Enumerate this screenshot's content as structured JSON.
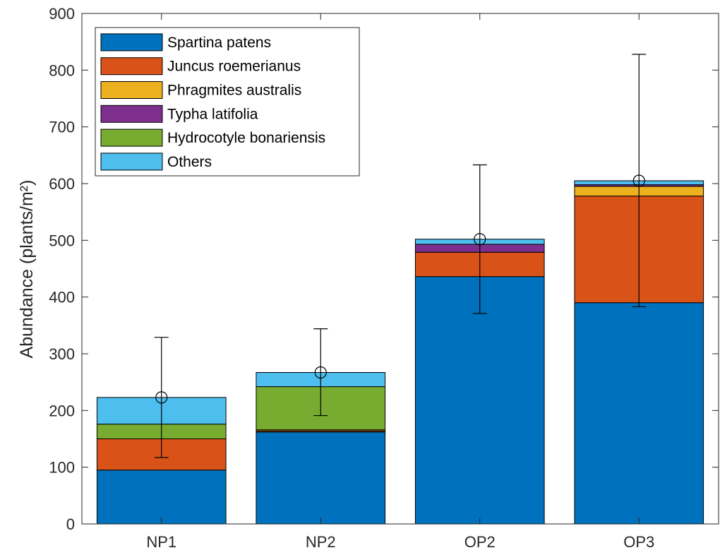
{
  "chart_data": {
    "type": "bar",
    "stacked": true,
    "categories": [
      "NP1",
      "NP2",
      "OP2",
      "OP3"
    ],
    "series": [
      {
        "name": "Spartina patens",
        "color": "#0072BD",
        "values": [
          95,
          162,
          436,
          390
        ]
      },
      {
        "name": "Juncus roemerianus",
        "color": "#D95319",
        "values": [
          55,
          2,
          43,
          188
        ]
      },
      {
        "name": "Phragmites australis",
        "color": "#EDB120",
        "values": [
          0,
          2,
          0,
          17
        ]
      },
      {
        "name": "Typha latifolia",
        "color": "#7E2F8E",
        "values": [
          0,
          0,
          14,
          3
        ]
      },
      {
        "name": "Hydrocotyle bonariensis",
        "color": "#77AC30",
        "values": [
          26,
          76,
          0,
          0
        ]
      },
      {
        "name": "Others",
        "color": "#4DBEEE",
        "values": [
          47,
          25,
          9,
          7
        ]
      }
    ],
    "totals": [
      223,
      267,
      502,
      605
    ],
    "error_bars": {
      "lower": [
        117,
        191,
        371,
        383
      ],
      "upper": [
        329,
        344,
        633,
        828
      ]
    },
    "ylabel": "Abundance (plants/m²)",
    "ylim": [
      0,
      900
    ],
    "yticks": [
      0,
      100,
      200,
      300,
      400,
      500,
      600,
      700,
      800,
      900
    ],
    "grid": false,
    "legend_position": "top-left"
  }
}
